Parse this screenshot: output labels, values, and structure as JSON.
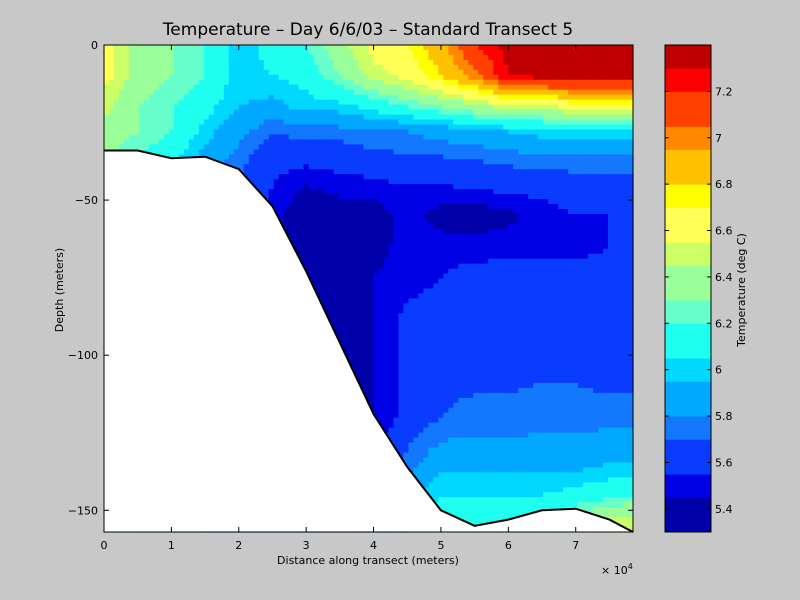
{
  "chart_data": {
    "type": "heatmap",
    "title": "Temperature – Day 6/6/03 – Standard Transect 5",
    "xlabel": "Distance along transect (meters)",
    "ylabel": "Depth (meters)",
    "x_multiplier_label": "× 10",
    "x_multiplier_exp": "4",
    "xlim": [
      0,
      78500
    ],
    "ylim": [
      -157,
      0
    ],
    "x_ticks": [
      "0",
      "1",
      "2",
      "3",
      "4",
      "5",
      "6",
      "7"
    ],
    "y_ticks": [
      "0",
      "−50",
      "−100",
      "−150"
    ],
    "colorbar": {
      "label": "Temperature (deg C)",
      "range": [
        5.3,
        7.4
      ],
      "ticks": [
        "5.4",
        "5.6",
        "5.8",
        "6",
        "6.2",
        "6.4",
        "6.6",
        "6.8",
        "7",
        "7.2"
      ],
      "levels": [
        5.3,
        5.45,
        5.55,
        5.7,
        5.8,
        5.95,
        6.05,
        6.2,
        6.3,
        6.45,
        6.55,
        6.7,
        6.8,
        6.95,
        7.05,
        7.2,
        7.3
      ],
      "colors": [
        "#0000aa",
        "#0000e6",
        "#0a3cff",
        "#1478ff",
        "#00a8ff",
        "#00d8ff",
        "#1efff0",
        "#66ffcc",
        "#99ff99",
        "#ccff66",
        "#ffff55",
        "#ffff00",
        "#ffc000",
        "#ff8800",
        "#ff4000",
        "#ff0000",
        "#c00000"
      ]
    },
    "bathymetry": {
      "x": [
        0,
        5000,
        10000,
        15000,
        20000,
        25000,
        30000,
        35000,
        40000,
        45000,
        50000,
        55000,
        60000,
        65000,
        70000,
        75000,
        78500
      ],
      "depth": [
        -34,
        -34,
        -36.5,
        -36,
        -40,
        -52,
        -73,
        -96,
        -119,
        -136,
        -150,
        -155,
        -153,
        -150,
        -149.5,
        -153,
        -157
      ]
    },
    "temperature_field": {
      "x": [
        0,
        5000,
        10000,
        15000,
        20000,
        25000,
        30000,
        35000,
        40000,
        45000,
        50000,
        55000,
        60000,
        65000,
        70000,
        75000,
        78500
      ],
      "depth": [
        0,
        -10,
        -20,
        -28,
        -36,
        -45,
        -55,
        -65,
        -75,
        -90,
        -105,
        -120,
        -135,
        -145,
        -152,
        -157
      ],
      "values": [
        [
          6.6,
          6.4,
          6.3,
          6.2,
          6.0,
          6.1,
          6.2,
          6.4,
          6.6,
          6.7,
          6.9,
          7.2,
          7.35,
          7.35,
          7.35,
          7.35,
          7.35
        ],
        [
          6.6,
          6.4,
          6.3,
          6.2,
          6.0,
          6.05,
          6.1,
          6.3,
          6.5,
          6.6,
          6.8,
          7.0,
          7.3,
          7.35,
          7.35,
          7.35,
          7.35
        ],
        [
          6.5,
          6.3,
          6.2,
          6.1,
          5.95,
          5.9,
          6.0,
          6.0,
          6.1,
          6.2,
          6.3,
          6.4,
          6.5,
          6.5,
          6.6,
          6.6,
          6.6
        ],
        [
          6.4,
          6.3,
          6.2,
          6.0,
          5.85,
          5.7,
          5.75,
          5.75,
          5.8,
          5.8,
          5.85,
          5.9,
          5.95,
          6.0,
          6.0,
          6.0,
          6.0
        ],
        [
          6.3,
          6.2,
          6.1,
          5.9,
          5.75,
          5.6,
          5.6,
          5.62,
          5.65,
          5.7,
          5.7,
          5.72,
          5.75,
          5.8,
          5.8,
          5.8,
          5.8
        ],
        [
          6.2,
          6.1,
          6.0,
          5.85,
          5.7,
          5.55,
          5.45,
          5.5,
          5.52,
          5.55,
          5.55,
          5.58,
          5.6,
          5.6,
          5.62,
          5.62,
          5.65
        ],
        [
          6.1,
          6.0,
          5.9,
          5.8,
          5.65,
          5.5,
          5.35,
          5.38,
          5.38,
          5.5,
          5.4,
          5.38,
          5.42,
          5.5,
          5.55,
          5.55,
          5.6
        ],
        [
          6.0,
          5.9,
          5.8,
          5.75,
          5.6,
          5.45,
          5.3,
          5.32,
          5.4,
          5.5,
          5.5,
          5.5,
          5.5,
          5.5,
          5.5,
          5.55,
          5.6
        ],
        [
          6.0,
          5.9,
          5.8,
          5.7,
          5.6,
          5.45,
          5.4,
          5.4,
          5.45,
          5.5,
          5.55,
          5.6,
          5.62,
          5.62,
          5.62,
          5.62,
          5.62
        ],
        [
          6.0,
          5.9,
          5.8,
          5.7,
          5.6,
          5.5,
          5.45,
          5.4,
          5.45,
          5.6,
          5.62,
          5.65,
          5.65,
          5.65,
          5.65,
          5.6,
          5.62
        ],
        [
          6.0,
          5.9,
          5.8,
          5.7,
          5.6,
          5.5,
          5.45,
          5.4,
          5.45,
          5.6,
          5.68,
          5.68,
          5.68,
          5.68,
          5.68,
          5.65,
          5.65
        ],
        [
          6.0,
          5.9,
          5.8,
          5.7,
          5.6,
          5.5,
          5.45,
          5.4,
          5.45,
          5.6,
          5.7,
          5.72,
          5.72,
          5.75,
          5.75,
          5.75,
          5.75
        ],
        [
          6.0,
          5.95,
          5.9,
          5.8,
          5.7,
          5.6,
          5.55,
          5.5,
          5.55,
          5.75,
          5.9,
          5.9,
          5.9,
          5.9,
          5.9,
          5.95,
          5.95
        ],
        [
          6.05,
          6.0,
          5.95,
          5.9,
          5.85,
          5.8,
          5.75,
          5.7,
          5.75,
          5.9,
          6.05,
          6.05,
          6.05,
          6.05,
          6.1,
          6.15,
          6.2
        ],
        [
          6.1,
          6.05,
          6.0,
          5.95,
          5.9,
          5.85,
          5.8,
          5.75,
          5.8,
          5.95,
          6.1,
          6.1,
          6.1,
          6.15,
          6.3,
          6.45,
          6.45
        ],
        [
          6.1,
          6.05,
          6.0,
          5.95,
          5.9,
          5.85,
          5.8,
          5.75,
          5.8,
          5.95,
          6.1,
          6.1,
          6.1,
          6.15,
          6.3,
          6.45,
          6.5
        ]
      ]
    }
  }
}
